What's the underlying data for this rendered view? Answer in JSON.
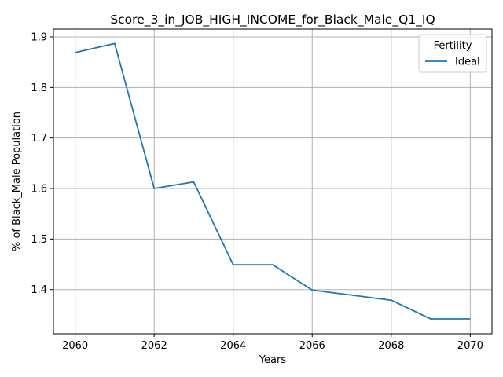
{
  "chart_data": {
    "type": "line",
    "title": "Score_3_in_JOB_HIGH_INCOME_for_Black_Male_Q1_IQ",
    "xlabel": "Years",
    "ylabel": "% of Black_Male Population",
    "xlim": [
      2059.45,
      2070.55
    ],
    "ylim": [
      1.3125,
      1.9155
    ],
    "x_ticks": [
      2060,
      2062,
      2064,
      2066,
      2068,
      2070
    ],
    "y_ticks": [
      1.4,
      1.5,
      1.6,
      1.7,
      1.8,
      1.9
    ],
    "x_tick_labels": [
      "2060",
      "2062",
      "2064",
      "2066",
      "2068",
      "2070"
    ],
    "y_tick_labels": [
      "1.4",
      "1.5",
      "1.6",
      "1.7",
      "1.8",
      "1.9"
    ],
    "grid": true,
    "legend": {
      "title": "Fertility",
      "position": "top-right"
    },
    "series": [
      {
        "name": "Ideal",
        "color": "#1f77b4",
        "x": [
          2060,
          2061,
          2062,
          2063,
          2064,
          2065,
          2066,
          2067,
          2068,
          2069,
          2070
        ],
        "y": [
          1.869,
          1.887,
          1.6,
          1.613,
          1.449,
          1.449,
          1.399,
          1.389,
          1.379,
          1.342,
          1.342
        ]
      }
    ]
  }
}
